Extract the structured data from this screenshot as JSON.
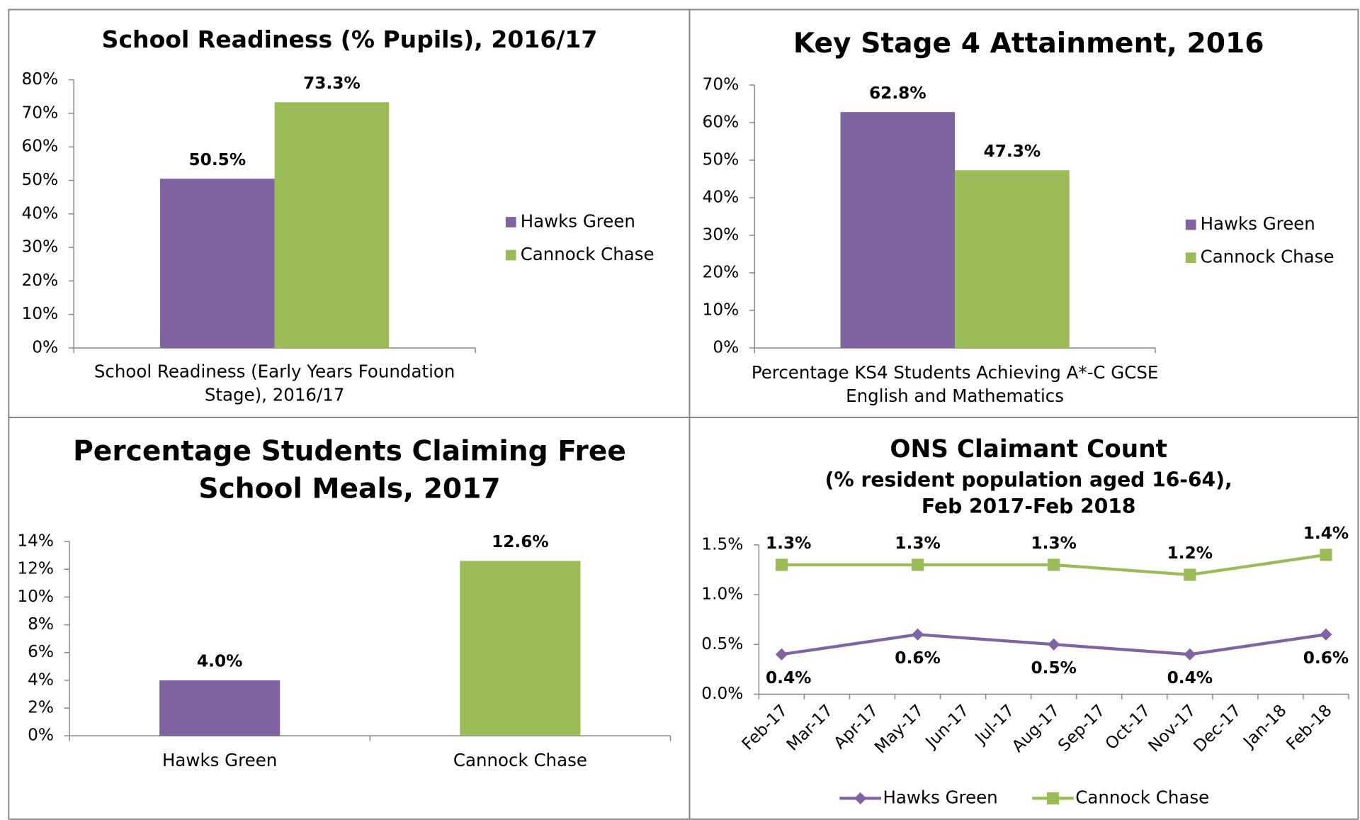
{
  "chart_data": [
    {
      "type": "bar",
      "title": "School Readiness (% Pupils), 2016/17",
      "categories": [
        "School Readiness (Early Years Foundation Stage), 2016/17"
      ],
      "series": [
        {
          "name": "Hawks Green",
          "color": "#8064a2",
          "values": [
            50.5
          ],
          "value_labels": [
            "50.5%"
          ]
        },
        {
          "name": "Cannock Chase",
          "color": "#9bbb59",
          "values": [
            73.3
          ],
          "value_labels": [
            "73.3%"
          ]
        }
      ],
      "ylim": [
        0,
        80
      ],
      "yticks": [
        {
          "value": 0,
          "label": "0%"
        },
        {
          "value": 10,
          "label": "10%"
        },
        {
          "value": 20,
          "label": "20%"
        },
        {
          "value": 30,
          "label": "30%"
        },
        {
          "value": 40,
          "label": "40%"
        },
        {
          "value": 50,
          "label": "50%"
        },
        {
          "value": 60,
          "label": "60%"
        },
        {
          "value": 70,
          "label": "70%"
        },
        {
          "value": 80,
          "label": "80%"
        }
      ],
      "legend": "right"
    },
    {
      "type": "bar",
      "title": "Key Stage 4 Attainment, 2016",
      "categories": [
        "Percentage KS4 Students Achieving A*-C GCSE English and Mathematics"
      ],
      "series": [
        {
          "name": "Hawks Green",
          "color": "#8064a2",
          "values": [
            62.8
          ],
          "value_labels": [
            "62.8%"
          ]
        },
        {
          "name": "Cannock Chase",
          "color": "#9bbb59",
          "values": [
            47.3
          ],
          "value_labels": [
            "47.3%"
          ]
        }
      ],
      "ylim": [
        0,
        70
      ],
      "yticks": [
        {
          "value": 0,
          "label": "0%"
        },
        {
          "value": 10,
          "label": "10%"
        },
        {
          "value": 20,
          "label": "20%"
        },
        {
          "value": 30,
          "label": "30%"
        },
        {
          "value": 40,
          "label": "40%"
        },
        {
          "value": 50,
          "label": "50%"
        },
        {
          "value": 60,
          "label": "60%"
        },
        {
          "value": 70,
          "label": "70%"
        }
      ],
      "legend": "right"
    },
    {
      "type": "bar",
      "title": [
        "Percentage Students Claiming Free",
        "School Meals, 2017"
      ],
      "categories": [
        "Hawks Green",
        "Cannock Chase"
      ],
      "values": [
        4.0,
        12.6
      ],
      "value_labels": [
        "4.0%",
        "12.6%"
      ],
      "colors": [
        "#8064a2",
        "#9bbb59"
      ],
      "ylim": [
        0,
        14
      ],
      "yticks": [
        {
          "value": 0,
          "label": "0%"
        },
        {
          "value": 2,
          "label": "2%"
        },
        {
          "value": 4,
          "label": "4%"
        },
        {
          "value": 6,
          "label": "6%"
        },
        {
          "value": 8,
          "label": "8%"
        },
        {
          "value": 10,
          "label": "10%"
        },
        {
          "value": 12,
          "label": "12%"
        },
        {
          "value": 14,
          "label": "14%"
        }
      ]
    },
    {
      "type": "line",
      "title": "ONS Claimant Count",
      "subtitle": [
        "(% resident population aged 16-64),",
        "Feb 2017-Feb 2018"
      ],
      "categories": [
        "Feb-17",
        "Mar-17",
        "Apr-17",
        "May-17",
        "Jun-17",
        "Jul-17",
        "Aug-17",
        "Sep-17",
        "Oct-17",
        "Nov-17",
        "Dec-17",
        "Jan-18",
        "Feb-18"
      ],
      "series": [
        {
          "name": "Hawks Green",
          "color": "#8064a2",
          "marker": "diamond",
          "x": [
            "Feb-17",
            "May-17",
            "Aug-17",
            "Nov-17",
            "Feb-18"
          ],
          "values": [
            0.4,
            0.6,
            0.5,
            0.4,
            0.6
          ],
          "value_labels": [
            "0.4%",
            "0.6%",
            "0.5%",
            "0.4%",
            "0.6%"
          ]
        },
        {
          "name": "Cannock Chase",
          "color": "#9bbb59",
          "marker": "square",
          "x": [
            "Feb-17",
            "May-17",
            "Aug-17",
            "Nov-17",
            "Feb-18"
          ],
          "values": [
            1.3,
            1.3,
            1.3,
            1.2,
            1.4
          ],
          "value_labels": [
            "1.3%",
            "1.3%",
            "1.3%",
            "1.2%",
            "1.4%"
          ]
        }
      ],
      "ylim": [
        0,
        1.5
      ],
      "yticks": [
        {
          "value": 0,
          "label": "0.0%"
        },
        {
          "value": 0.5,
          "label": "0.5%"
        },
        {
          "value": 1.0,
          "label": "1.0%"
        },
        {
          "value": 1.5,
          "label": "1.5%"
        }
      ],
      "legend": "bottom"
    }
  ]
}
